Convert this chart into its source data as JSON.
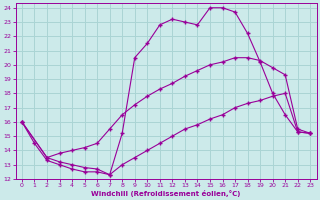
{
  "xlabel": "Windchill (Refroidissement éolien,°C)",
  "bg_color": "#cceaea",
  "grid_color": "#aad4d4",
  "line_color": "#990099",
  "xlim": [
    -0.5,
    23.5
  ],
  "ylim": [
    12,
    24.3
  ],
  "xticks": [
    0,
    1,
    2,
    3,
    4,
    5,
    6,
    7,
    8,
    9,
    10,
    11,
    12,
    13,
    14,
    15,
    16,
    17,
    18,
    19,
    20,
    21,
    22,
    23
  ],
  "yticks": [
    12,
    13,
    14,
    15,
    16,
    17,
    18,
    19,
    20,
    21,
    22,
    23,
    24
  ],
  "line1_x": [
    0,
    1,
    2,
    3,
    4,
    5,
    6,
    7,
    8,
    9,
    10,
    11,
    12,
    13,
    14,
    15,
    16,
    17,
    18,
    19,
    20,
    21,
    22,
    23
  ],
  "line1_y": [
    16,
    14.5,
    13.3,
    13.0,
    12.7,
    12.5,
    12.5,
    12.3,
    15.2,
    20.5,
    21.5,
    22.8,
    23.2,
    23.0,
    22.8,
    24.0,
    24.0,
    23.7,
    22.2,
    20.2,
    18.0,
    16.5,
    15.3,
    15.2
  ],
  "line2_x": [
    0,
    2,
    3,
    4,
    5,
    6,
    7,
    8,
    9,
    10,
    11,
    12,
    13,
    14,
    15,
    16,
    17,
    18,
    19,
    20,
    21,
    22,
    23
  ],
  "line2_y": [
    16.0,
    13.5,
    13.8,
    14.0,
    14.2,
    14.5,
    15.5,
    16.5,
    17.2,
    17.8,
    18.3,
    18.7,
    19.2,
    19.6,
    20.0,
    20.2,
    20.5,
    20.5,
    20.3,
    19.8,
    19.3,
    15.5,
    15.2
  ],
  "line3_x": [
    0,
    2,
    3,
    4,
    5,
    6,
    7,
    8,
    9,
    10,
    11,
    12,
    13,
    14,
    15,
    16,
    17,
    18,
    19,
    20,
    21,
    22,
    23
  ],
  "line3_y": [
    16.0,
    13.5,
    13.2,
    13.0,
    12.8,
    12.7,
    12.3,
    13.0,
    13.5,
    14.0,
    14.5,
    15.0,
    15.5,
    15.8,
    16.2,
    16.5,
    17.0,
    17.3,
    17.5,
    17.8,
    18.0,
    15.3,
    15.2
  ]
}
